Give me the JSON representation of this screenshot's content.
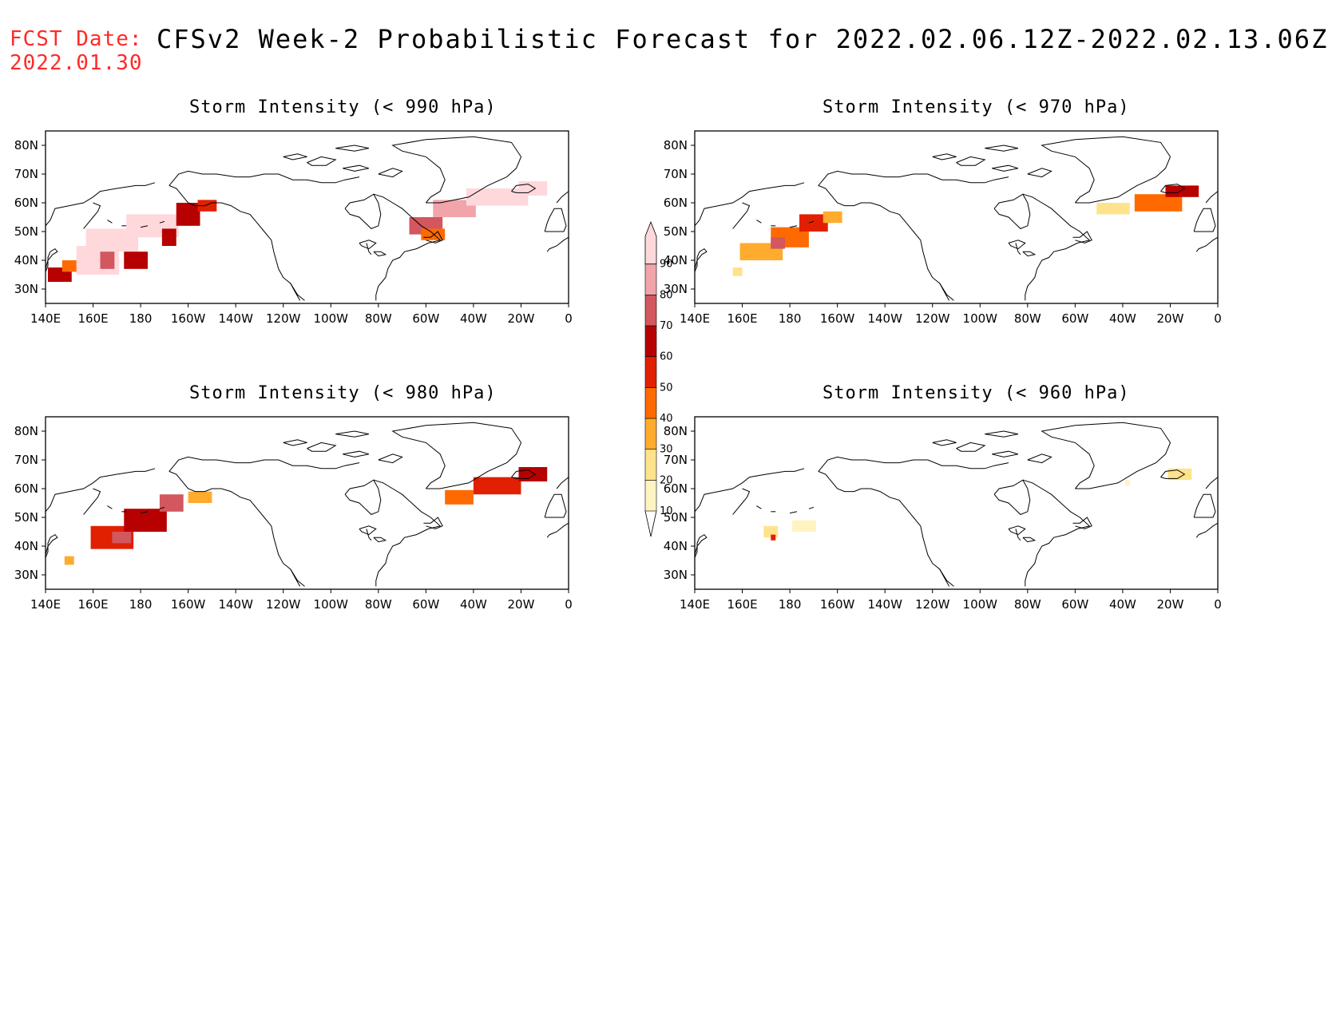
{
  "header": {
    "fcst_label": "FCST Date:",
    "fcst_date": "2022.01.30",
    "title": "CFSv2 Week-2 Probabilistic Forecast for 2022.02.06.12Z-2022.02.13.06Z"
  },
  "colors": {
    "fcst_text": "#ff2a2a",
    "levels": [
      "#fff3c2",
      "#ffe38c",
      "#ffab2e",
      "#ff6a00",
      "#e02000",
      "#b70000",
      "#d2575e",
      "#f1a4aa",
      "#ffd8dc"
    ]
  },
  "colorbar": {
    "levels": [
      10,
      20,
      30,
      40,
      50,
      60,
      70,
      80,
      90
    ],
    "labels": [
      "10",
      "20",
      "30",
      "40",
      "50",
      "60",
      "70",
      "80",
      "90"
    ]
  },
  "axes": {
    "lon_labels": [
      "140E",
      "160E",
      "180",
      "160W",
      "140W",
      "120W",
      "100W",
      "80W",
      "60W",
      "40W",
      "20W",
      "0"
    ],
    "lat_labels": [
      "30N",
      "40N",
      "50N",
      "60N",
      "70N",
      "80N"
    ],
    "lon_range": [
      140,
      360
    ],
    "lat_range": [
      25,
      85
    ]
  },
  "panels": [
    {
      "title": "Storm Intensity (< 990 hPa)",
      "threshold_hpa": 990,
      "fields": [
        {
          "lon": 162,
          "lat": 40,
          "w": 18,
          "h": 10,
          "level": 90
        },
        {
          "lon": 168,
          "lat": 47,
          "w": 22,
          "h": 8,
          "level": 90
        },
        {
          "lon": 185,
          "lat": 52,
          "w": 22,
          "h": 8,
          "level": 90
        },
        {
          "lon": 200,
          "lat": 56,
          "w": 10,
          "h": 8,
          "level": 60
        },
        {
          "lon": 192,
          "lat": 48,
          "w": 6,
          "h": 6,
          "level": 60
        },
        {
          "lon": 178,
          "lat": 40,
          "w": 10,
          "h": 6,
          "level": 60
        },
        {
          "lon": 166,
          "lat": 40,
          "w": 6,
          "h": 6,
          "level": 70
        },
        {
          "lon": 146,
          "lat": 35,
          "w": 10,
          "h": 5,
          "level": 60
        },
        {
          "lon": 150,
          "lat": 38,
          "w": 6,
          "h": 4,
          "level": 40
        },
        {
          "lon": 208,
          "lat": 59,
          "w": 8,
          "h": 4,
          "level": 50
        },
        {
          "lon": 300,
          "lat": 52,
          "w": 14,
          "h": 6,
          "level": 70
        },
        {
          "lon": 303,
          "lat": 49,
          "w": 10,
          "h": 4,
          "level": 40
        },
        {
          "lon": 312,
          "lat": 58,
          "w": 18,
          "h": 6,
          "level": 80
        },
        {
          "lon": 330,
          "lat": 62,
          "w": 26,
          "h": 6,
          "level": 90
        },
        {
          "lon": 345,
          "lat": 65,
          "w": 12,
          "h": 5,
          "level": 90
        }
      ]
    },
    {
      "title": "Storm Intensity (< 970 hPa)",
      "threshold_hpa": 970,
      "fields": [
        {
          "lon": 168,
          "lat": 43,
          "w": 18,
          "h": 6,
          "level": 30
        },
        {
          "lon": 180,
          "lat": 48,
          "w": 16,
          "h": 7,
          "level": 40
        },
        {
          "lon": 190,
          "lat": 53,
          "w": 12,
          "h": 6,
          "level": 50
        },
        {
          "lon": 175,
          "lat": 46,
          "w": 6,
          "h": 4,
          "level": 70
        },
        {
          "lon": 198,
          "lat": 55,
          "w": 8,
          "h": 4,
          "level": 30
        },
        {
          "lon": 158,
          "lat": 36,
          "w": 4,
          "h": 3,
          "level": 20
        },
        {
          "lon": 316,
          "lat": 58,
          "w": 14,
          "h": 4,
          "level": 20
        },
        {
          "lon": 335,
          "lat": 60,
          "w": 20,
          "h": 6,
          "level": 40
        },
        {
          "lon": 345,
          "lat": 64,
          "w": 14,
          "h": 4,
          "level": 60
        }
      ]
    },
    {
      "title": "Storm Intensity (< 980 hPa)",
      "threshold_hpa": 980,
      "fields": [
        {
          "lon": 168,
          "lat": 43,
          "w": 18,
          "h": 8,
          "level": 50
        },
        {
          "lon": 182,
          "lat": 49,
          "w": 18,
          "h": 8,
          "level": 60
        },
        {
          "lon": 193,
          "lat": 55,
          "w": 10,
          "h": 6,
          "level": 70
        },
        {
          "lon": 172,
          "lat": 43,
          "w": 8,
          "h": 4,
          "level": 70
        },
        {
          "lon": 205,
          "lat": 57,
          "w": 10,
          "h": 4,
          "level": 30
        },
        {
          "lon": 150,
          "lat": 35,
          "w": 4,
          "h": 3,
          "level": 30
        },
        {
          "lon": 314,
          "lat": 57,
          "w": 12,
          "h": 5,
          "level": 40
        },
        {
          "lon": 330,
          "lat": 61,
          "w": 20,
          "h": 6,
          "level": 50
        },
        {
          "lon": 345,
          "lat": 65,
          "w": 12,
          "h": 5,
          "level": 60
        }
      ]
    },
    {
      "title": "Storm Intensity (< 960 hPa)",
      "threshold_hpa": 960,
      "fields": [
        {
          "lon": 172,
          "lat": 45,
          "w": 6,
          "h": 4,
          "level": 20
        },
        {
          "lon": 173,
          "lat": 43,
          "w": 2,
          "h": 2,
          "level": 50
        },
        {
          "lon": 186,
          "lat": 47,
          "w": 10,
          "h": 4,
          "level": 10
        },
        {
          "lon": 344,
          "lat": 65,
          "w": 10,
          "h": 4,
          "level": 20
        },
        {
          "lon": 322,
          "lat": 62,
          "w": 2,
          "h": 2,
          "level": 10
        }
      ]
    }
  ]
}
